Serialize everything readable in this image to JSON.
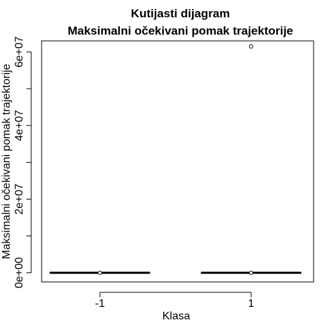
{
  "chart_data": {
    "type": "box",
    "title": "Kutijasti dijagram",
    "subtitle": "Maksimalni očekivani pomak trajektorije",
    "xlabel": "Klasa",
    "ylabel": "Maksimalni očekivani pomak trajektorije",
    "categories": [
      "-1",
      "1"
    ],
    "y_ticks": [
      0,
      20000000,
      40000000,
      60000000
    ],
    "y_tick_labels": [
      "0e+00",
      "2e+07",
      "4e+07",
      "6e+07"
    ],
    "ylim": [
      -2500000,
      63000000
    ],
    "boxes": [
      {
        "category": "-1",
        "min": 0,
        "q1": 0,
        "median": 0,
        "q3": 0,
        "max": 0,
        "outliers": [
          0
        ]
      },
      {
        "category": "1",
        "min": 0,
        "q1": 0,
        "median": 0,
        "q3": 0,
        "max": 0,
        "outliers": [
          0,
          61500000
        ]
      }
    ],
    "grid": false,
    "legend": "none"
  }
}
